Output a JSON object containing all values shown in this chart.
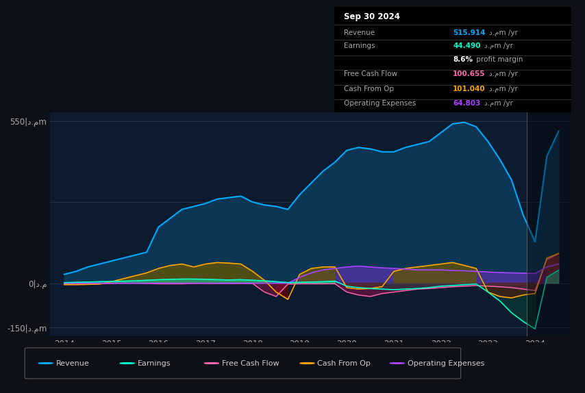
{
  "bg_color": "#0d1117",
  "plot_bg_color": "#0d1b2e",
  "grid_color": "#2a3a4a",
  "years": [
    2014.0,
    2014.25,
    2014.5,
    2014.75,
    2015.0,
    2015.25,
    2015.5,
    2015.75,
    2016.0,
    2016.25,
    2016.5,
    2016.75,
    2017.0,
    2017.25,
    2017.5,
    2017.75,
    2018.0,
    2018.25,
    2018.5,
    2018.75,
    2019.0,
    2019.25,
    2019.5,
    2019.75,
    2020.0,
    2020.25,
    2020.5,
    2020.75,
    2021.0,
    2021.25,
    2021.5,
    2021.75,
    2022.0,
    2022.25,
    2022.5,
    2022.75,
    2023.0,
    2023.25,
    2023.5,
    2023.75,
    2024.0,
    2024.25,
    2024.5
  ],
  "revenue": [
    30,
    40,
    55,
    65,
    75,
    85,
    95,
    105,
    190,
    220,
    250,
    260,
    270,
    285,
    290,
    295,
    275,
    265,
    260,
    250,
    300,
    340,
    380,
    410,
    450,
    460,
    455,
    445,
    445,
    460,
    470,
    480,
    510,
    540,
    545,
    530,
    480,
    420,
    350,
    230,
    140,
    430,
    515
  ],
  "earnings": [
    2,
    3,
    4,
    5,
    6,
    7,
    8,
    10,
    12,
    13,
    14,
    14,
    13,
    12,
    11,
    12,
    10,
    8,
    5,
    2,
    3,
    4,
    5,
    7,
    -10,
    -15,
    -18,
    -20,
    -22,
    -20,
    -18,
    -15,
    -10,
    -8,
    -5,
    -3,
    -30,
    -60,
    -100,
    -130,
    -155,
    20,
    44
  ],
  "free_cash_flow": [
    -2,
    -3,
    -3,
    -2,
    -1,
    0,
    0,
    -1,
    -2,
    -2,
    -2,
    -1,
    -1,
    -1,
    -1,
    -1,
    -1,
    -30,
    -45,
    -3,
    -2,
    -2,
    -2,
    -2,
    -30,
    -40,
    -45,
    -35,
    -30,
    -25,
    -20,
    -18,
    -15,
    -12,
    -10,
    -8,
    -10,
    -12,
    -15,
    -20,
    -25,
    80,
    100
  ],
  "cash_from_op": [
    -5,
    -5,
    -4,
    -3,
    5,
    15,
    25,
    35,
    50,
    60,
    65,
    55,
    65,
    70,
    68,
    65,
    40,
    10,
    -30,
    -55,
    30,
    50,
    55,
    55,
    -15,
    -20,
    -18,
    -12,
    40,
    50,
    55,
    60,
    65,
    70,
    60,
    50,
    -30,
    -45,
    -50,
    -40,
    -35,
    85,
    101
  ],
  "op_expenses": [
    0,
    0,
    0,
    0,
    0,
    0,
    0,
    0,
    0,
    0,
    0,
    0,
    0,
    0,
    0,
    0,
    0,
    0,
    0,
    0,
    20,
    35,
    45,
    50,
    55,
    58,
    55,
    52,
    50,
    48,
    45,
    45,
    45,
    43,
    42,
    40,
    38,
    36,
    35,
    34,
    33,
    55,
    65
  ],
  "ylim": [
    -180,
    580
  ],
  "yticks": [
    -150,
    0,
    550
  ],
  "xlim": [
    2013.7,
    2024.75
  ],
  "xticks": [
    2014,
    2015,
    2016,
    2017,
    2018,
    2019,
    2020,
    2021,
    2022,
    2023,
    2024
  ],
  "revenue_color": "#00aaff",
  "revenue_fill": "#0d3a5a",
  "earnings_color": "#00ffcc",
  "fcf_color": "#ff69b4",
  "cfop_color": "#ffa500",
  "opex_color": "#aa44ff",
  "highlight_x_start": 2023.83,
  "highlight_x_end": 2024.75,
  "legend": [
    {
      "label": "Revenue",
      "color": "#00aaff"
    },
    {
      "label": "Earnings",
      "color": "#00ffcc"
    },
    {
      "label": "Free Cash Flow",
      "color": "#ff69b4"
    },
    {
      "label": "Cash From Op",
      "color": "#ffa500"
    },
    {
      "label": "Operating Expenses",
      "color": "#aa44ff"
    }
  ],
  "infobox": {
    "date": "Sep 30 2024",
    "rows": [
      {
        "label": "Revenue",
        "value": "515.914",
        "unit": "د.مm /yr",
        "color": "#00aaff"
      },
      {
        "label": "Earnings",
        "value": "44.490",
        "unit": "د.مm /yr",
        "color": "#00ffcc"
      },
      {
        "label": "",
        "value": "8.6%",
        "unit": " profit margin",
        "color": "#ffffff"
      },
      {
        "label": "Free Cash Flow",
        "value": "100.655",
        "unit": "د.مm /yr",
        "color": "#ff69b4"
      },
      {
        "label": "Cash From Op",
        "value": "101.040",
        "unit": "د.مm /yr",
        "color": "#ffa500"
      },
      {
        "label": "Operating Expenses",
        "value": "64.803",
        "unit": "د.مm /yr",
        "color": "#aa44ff"
      }
    ]
  }
}
